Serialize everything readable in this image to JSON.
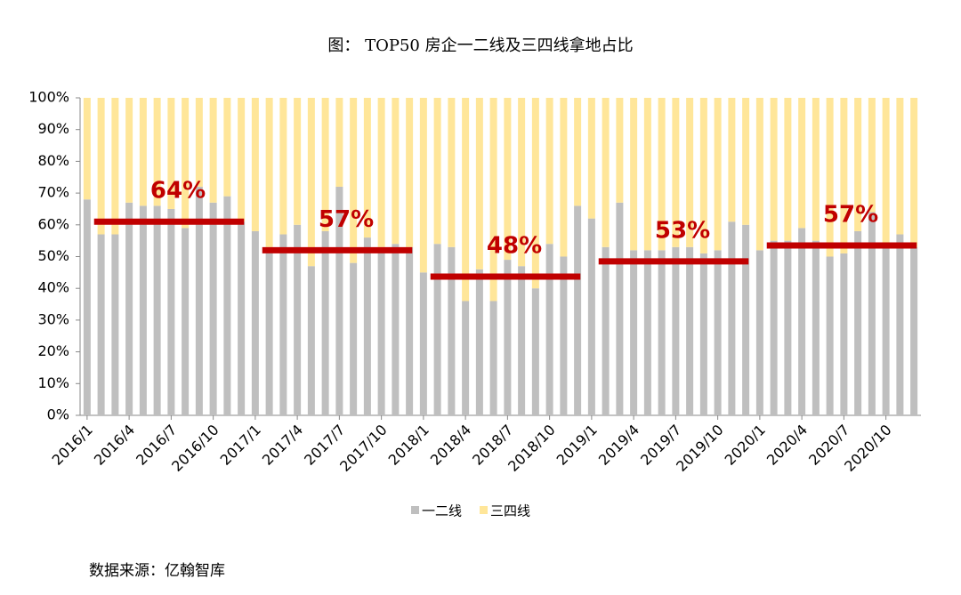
{
  "chart_data": {
    "type": "stacked_bar",
    "title": "图：  TOP50 房企一二线及三四线拿地占比",
    "source": "数据来源：亿翰智库",
    "categories": [
      "2016/1",
      null,
      null,
      "2016/4",
      null,
      null,
      "2016/7",
      null,
      null,
      "2016/10",
      null,
      null,
      "2017/1",
      null,
      null,
      "2017/4",
      null,
      null,
      "2017/7",
      null,
      null,
      "2017/10",
      null,
      null,
      "2018/1",
      null,
      null,
      "2018/4",
      null,
      null,
      "2018/7",
      null,
      null,
      "2018/10",
      null,
      null,
      "2019/1",
      null,
      null,
      "2019/4",
      null,
      null,
      "2019/7",
      null,
      null,
      "2019/10",
      null,
      null,
      "2020/1",
      null,
      null,
      "2020/4",
      null,
      null,
      "2020/7",
      null,
      null,
      "2020/10",
      null,
      null
    ],
    "series": [
      {
        "name": "一二线",
        "color": "#bfbfbf",
        "values": [
          68,
          57,
          57,
          67,
          66,
          66,
          65,
          59,
          72,
          67,
          69,
          61,
          58,
          53,
          57,
          60,
          47,
          58,
          72,
          48,
          56,
          53,
          54,
          53,
          45,
          54,
          53,
          36,
          46,
          36,
          49,
          47,
          40,
          54,
          50,
          66,
          62,
          53,
          67,
          52,
          52,
          52,
          53,
          53,
          51,
          52,
          61,
          60,
          52,
          55,
          55,
          59,
          55,
          50,
          51,
          58,
          64,
          53,
          57,
          53
        ]
      },
      {
        "name": "三四线",
        "color": "#ffe699",
        "values": [
          32,
          43,
          43,
          33,
          34,
          34,
          35,
          41,
          28,
          33,
          31,
          39,
          42,
          47,
          43,
          40,
          53,
          42,
          28,
          52,
          44,
          47,
          46,
          47,
          55,
          46,
          47,
          64,
          54,
          64,
          51,
          53,
          60,
          46,
          50,
          34,
          38,
          47,
          33,
          48,
          48,
          48,
          47,
          47,
          49,
          48,
          39,
          40,
          48,
          45,
          45,
          41,
          45,
          50,
          49,
          42,
          36,
          47,
          43,
          47
        ]
      }
    ],
    "annotations": [
      {
        "label": "64%",
        "y": 61
      },
      {
        "label": "57%",
        "y": 52
      },
      {
        "label": "48%",
        "y": 43.7
      },
      {
        "label": "53%",
        "y": 48.5
      },
      {
        "label": "57%",
        "y": 53.5
      }
    ],
    "annotation_color": "#c00000",
    "ylim": [
      0,
      100
    ],
    "yticks": [
      {
        "value": 0,
        "label": "0%"
      },
      {
        "value": 10,
        "label": "10%"
      },
      {
        "value": 20,
        "label": "20%"
      },
      {
        "value": 30,
        "label": "30%"
      },
      {
        "value": 40,
        "label": "40%"
      },
      {
        "value": 50,
        "label": "50%"
      },
      {
        "value": 60,
        "label": "60%"
      },
      {
        "value": 70,
        "label": "70%"
      },
      {
        "value": 80,
        "label": "80%"
      },
      {
        "value": 90,
        "label": "90%"
      },
      {
        "value": 100,
        "label": "100%"
      }
    ],
    "legend": "bottom"
  }
}
